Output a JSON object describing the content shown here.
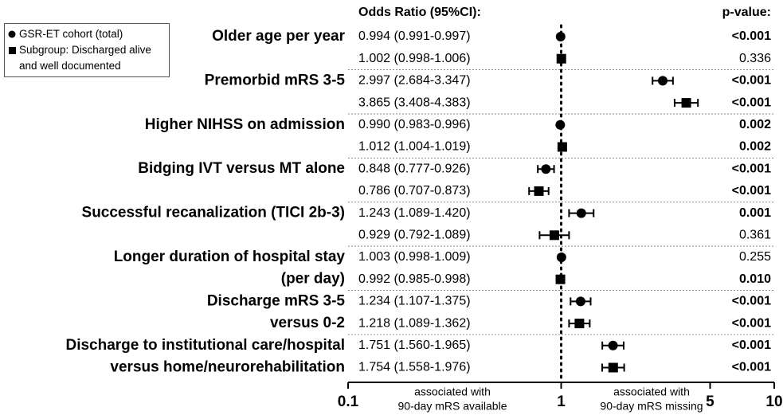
{
  "chart_data": {
    "type": "forest",
    "header_left": "Odds Ratio (95%CI):",
    "header_right": "p-value:",
    "categories": [
      [
        "Older age per year"
      ],
      [
        "Premorbid mRS 3-5"
      ],
      [
        "Higher NIHSS on admission"
      ],
      [
        "Bidging IVT versus MT alone"
      ],
      [
        "Successful recanalization (TICI 2b-3)"
      ],
      [
        "Longer duration of hospital stay",
        "(per day)"
      ],
      [
        "Discharge mRS 3-5",
        "versus 0-2"
      ],
      [
        "Discharge to institutional care/hospital",
        "versus home/neurorehabilitation"
      ]
    ],
    "series": [
      {
        "name": "GSR-ET cohort (total)",
        "marker": "circle",
        "color": "#000000",
        "values": [
          0.994,
          2.997,
          0.99,
          0.848,
          1.243,
          1.003,
          1.234,
          1.751
        ],
        "lower": [
          0.991,
          2.684,
          0.983,
          0.777,
          1.089,
          0.998,
          1.107,
          1.56
        ],
        "upper": [
          0.997,
          3.347,
          0.996,
          0.926,
          1.42,
          1.009,
          1.375,
          1.965
        ],
        "value_labels": [
          "0.994 (0.991-0.997)",
          "2.997 (2.684-3.347)",
          "0.990 (0.983-0.996)",
          "0.848 (0.777-0.926)",
          "1.243 (1.089-1.420)",
          "1.003 (0.998-1.009)",
          "1.234 (1.107-1.375)",
          "1.751 (1.560-1.965)"
        ],
        "p_values": [
          "<0.001",
          "<0.001",
          "0.002",
          "<0.001",
          "0.001",
          "0.255",
          "<0.001",
          "<0.001"
        ],
        "p_bold": [
          true,
          true,
          true,
          true,
          true,
          false,
          true,
          true
        ]
      },
      {
        "name": "Subgroup: Discharged alive and well documented",
        "marker": "square",
        "color": "#000000",
        "values": [
          1.002,
          3.865,
          1.012,
          0.786,
          0.929,
          0.992,
          1.218,
          1.754
        ],
        "lower": [
          0.998,
          3.408,
          1.004,
          0.707,
          0.792,
          0.985,
          1.089,
          1.558
        ],
        "upper": [
          1.006,
          4.383,
          1.019,
          0.873,
          1.089,
          0.998,
          1.362,
          1.976
        ],
        "value_labels": [
          "1.002 (0.998-1.006)",
          "3.865 (3.408-4.383)",
          "1.012 (1.004-1.019)",
          "0.786 (0.707-0.873)",
          "0.929 (0.792-1.089)",
          "0.992 (0.985-0.998)",
          "1.218 (1.089-1.362)",
          "1.754 (1.558-1.976)"
        ],
        "p_values": [
          "0.336",
          "<0.001",
          "0.002",
          "<0.001",
          "0.361",
          "0.010",
          "<0.001",
          "<0.001"
        ],
        "p_bold": [
          false,
          true,
          true,
          true,
          false,
          true,
          true,
          true
        ]
      }
    ],
    "xlim": [
      0.1,
      10
    ],
    "xticks": [
      0.1,
      1,
      5,
      10
    ],
    "xscale": "log",
    "reference_line": 1,
    "annotation_left": [
      "associated with",
      "90-day mRS available"
    ],
    "annotation_right": [
      "associated with",
      "90-day mRS missing"
    ]
  }
}
